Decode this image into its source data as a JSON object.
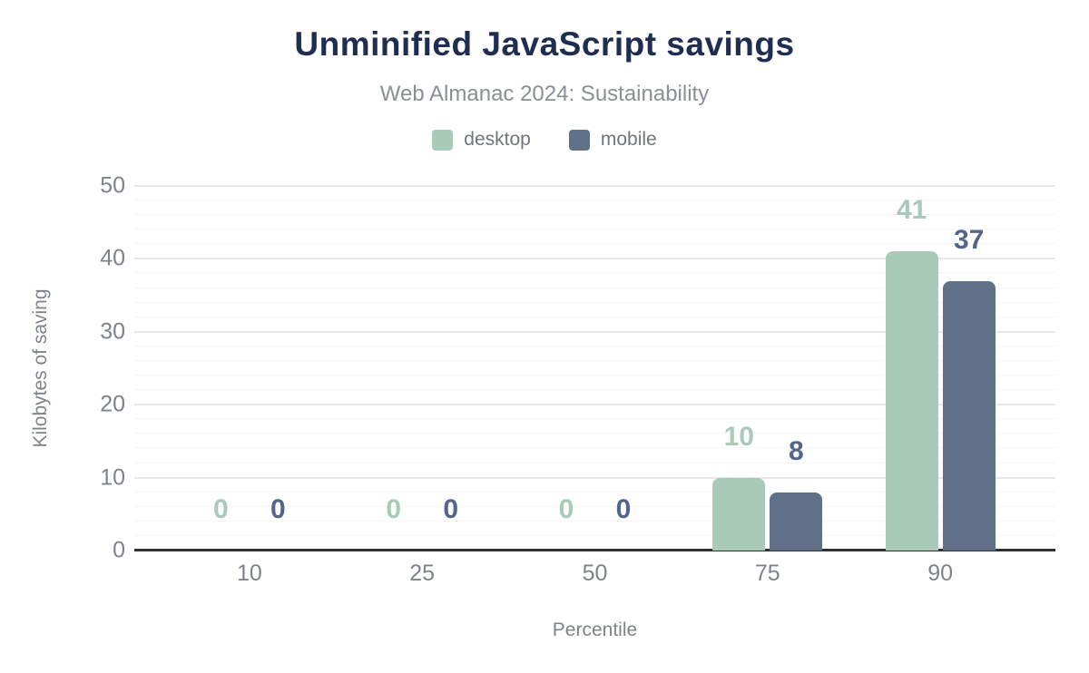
{
  "header": {
    "title": "Unminified JavaScript savings",
    "subtitle": "Web Almanac 2024: Sustainability"
  },
  "legend": {
    "items": [
      {
        "label": "desktop",
        "color": "#a9cab8"
      },
      {
        "label": "mobile",
        "color": "#5f7189"
      }
    ]
  },
  "axes": {
    "x_title": "Percentile",
    "y_title": "Kilobytes of saving"
  },
  "chart_data": {
    "type": "bar",
    "title": "Unminified JavaScript savings",
    "subtitle": "Web Almanac 2024: Sustainability",
    "categories": [
      "10",
      "25",
      "50",
      "75",
      "90"
    ],
    "series": [
      {
        "name": "desktop",
        "color": "#a9cab8",
        "label_color": "#a9cab8",
        "values": [
          0,
          0,
          0,
          10,
          41
        ]
      },
      {
        "name": "mobile",
        "color": "#5f7189",
        "label_color": "#54658a",
        "values": [
          0,
          0,
          0,
          8,
          37
        ]
      }
    ],
    "xlabel": "Percentile",
    "ylabel": "Kilobytes of saving",
    "ylim": [
      0,
      50
    ],
    "y_major_ticks": [
      0,
      10,
      20,
      30,
      40,
      50
    ],
    "y_minor_step": 2,
    "grid": true,
    "legend_position": "top",
    "data_labels": true
  },
  "colors": {
    "title": "#1e2d50",
    "subtitle": "#8a8e96",
    "legend_text": "#70757d",
    "tick_text": "#7e838b",
    "axis_line": "#303030",
    "grid_major": "#e8e8e8",
    "grid_minor": "#f5f5f5",
    "background": "#ffffff"
  }
}
